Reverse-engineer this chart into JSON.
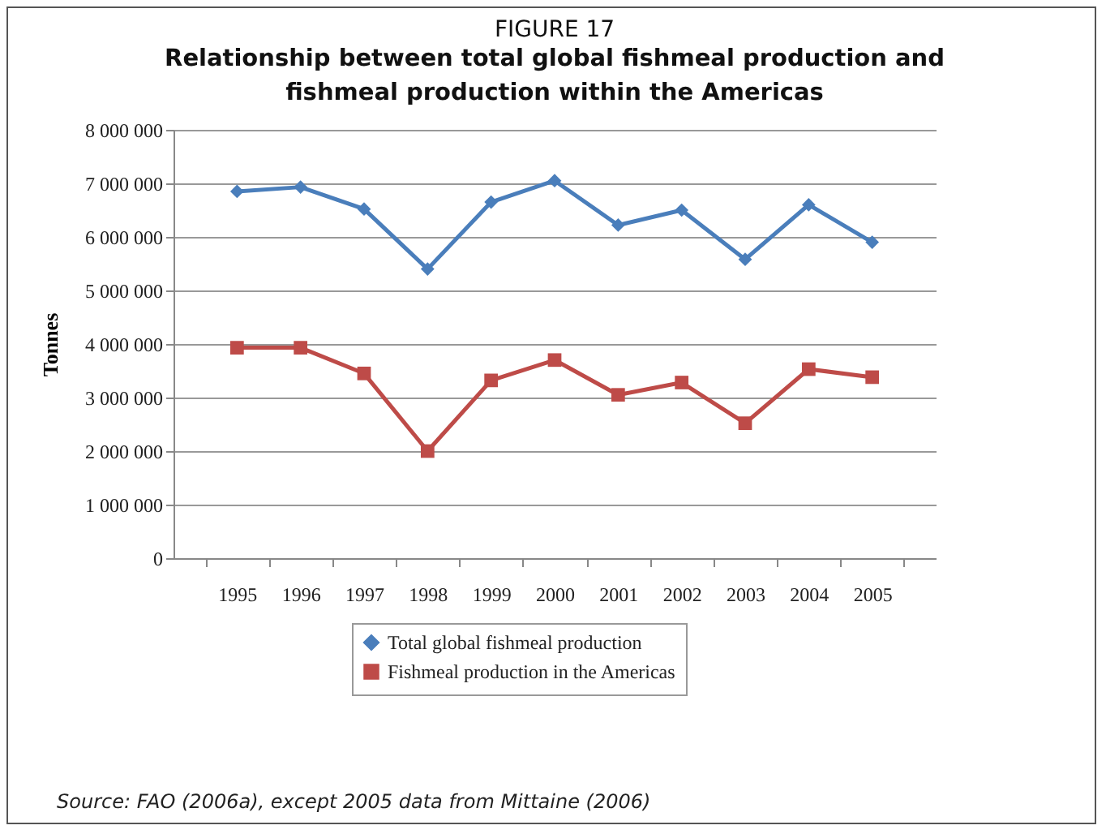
{
  "chart_data": {
    "type": "line",
    "title": "FIGURE 17",
    "subtitle": "Relationship between total global fishmeal production and fishmeal production within the Americas",
    "ylabel": "Tonnes",
    "categories": [
      "1995",
      "1996",
      "1997",
      "1998",
      "1999",
      "2000",
      "2001",
      "2002",
      "2003",
      "2004",
      "2005"
    ],
    "series": [
      {
        "name": "Total global fishmeal production",
        "color": "#4a7ebb",
        "marker": "diamond",
        "values": [
          6850000,
          6930000,
          6520000,
          5400000,
          6650000,
          7050000,
          6220000,
          6500000,
          5580000,
          6600000,
          5900000
        ]
      },
      {
        "name": "Fishmeal production in the Americas",
        "color": "#be4b48",
        "marker": "square",
        "values": [
          3930000,
          3930000,
          3450000,
          2000000,
          3320000,
          3700000,
          3050000,
          3280000,
          2520000,
          3530000,
          3380000
        ]
      }
    ],
    "ylim": [
      0,
      8000000
    ],
    "yticks": [
      {
        "value": 0,
        "label": "0"
      },
      {
        "value": 1000000,
        "label": "1 000 000"
      },
      {
        "value": 2000000,
        "label": "2 000 000"
      },
      {
        "value": 3000000,
        "label": "3 000 000"
      },
      {
        "value": 4000000,
        "label": "4 000 000"
      },
      {
        "value": 5000000,
        "label": "5 000 000"
      },
      {
        "value": 6000000,
        "label": "6 000 000"
      },
      {
        "value": 7000000,
        "label": "7 000 000"
      },
      {
        "value": 8000000,
        "label": "8 000 000"
      }
    ],
    "grid": "y",
    "legend": "bottom",
    "annotations": [
      "Source: FAO (2006a), except 2005 data from Mittaine (2006)"
    ]
  }
}
